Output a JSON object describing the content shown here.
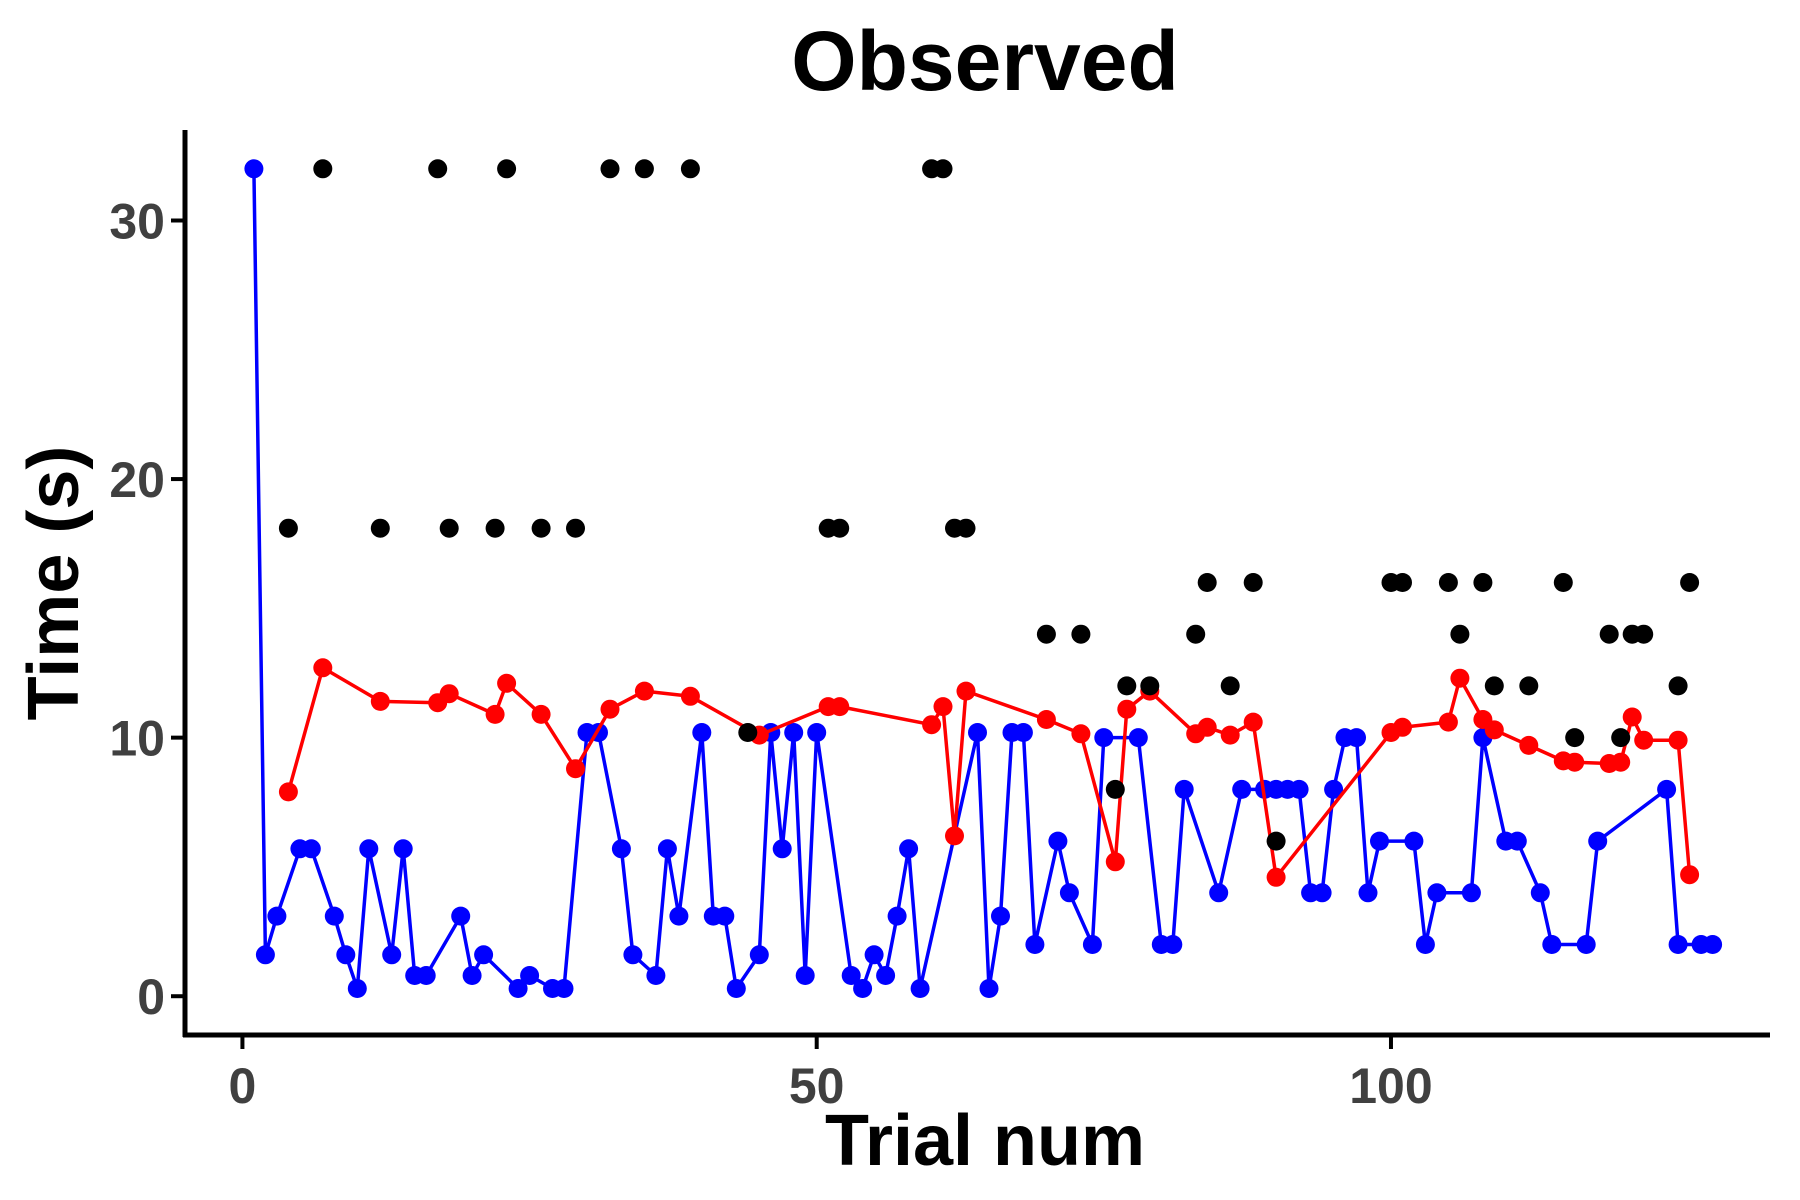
{
  "chart_data": {
    "type": "scatter",
    "title": "Observed",
    "xlabel": "Trial num",
    "ylabel": "Time (s)",
    "xlim": [
      -5,
      133
    ],
    "ylim": [
      -1.5,
      33.5
    ],
    "xticks": [
      0,
      50,
      100
    ],
    "yticks": [
      0,
      10,
      20,
      30
    ],
    "grid": false,
    "legend": "none",
    "series": [
      {
        "mode": "lines+markers",
        "color": "#0000ff",
        "points": [
          [
            1,
            32
          ],
          [
            2,
            1.6
          ],
          [
            3,
            3.1
          ],
          [
            5,
            5.7
          ],
          [
            6,
            5.7
          ],
          [
            8,
            3.1
          ],
          [
            9,
            1.6
          ],
          [
            10,
            0.3
          ],
          [
            11,
            5.7
          ],
          [
            13,
            1.6
          ],
          [
            14,
            5.7
          ],
          [
            15,
            0.8
          ],
          [
            16,
            0.8
          ],
          [
            19,
            3.1
          ],
          [
            20,
            0.8
          ],
          [
            21,
            1.6
          ],
          [
            24,
            0.3
          ],
          [
            25,
            0.8
          ],
          [
            27,
            0.3
          ],
          [
            28,
            0.3
          ],
          [
            30,
            10.2
          ],
          [
            31,
            10.2
          ],
          [
            33,
            5.7
          ],
          [
            34,
            1.6
          ],
          [
            36,
            0.8
          ],
          [
            37,
            5.7
          ],
          [
            38,
            3.1
          ],
          [
            40,
            10.2
          ],
          [
            41,
            3.1
          ],
          [
            42,
            3.1
          ],
          [
            43,
            0.3
          ],
          [
            45,
            1.6
          ],
          [
            46,
            10.2
          ],
          [
            47,
            5.7
          ],
          [
            48,
            10.2
          ],
          [
            49,
            0.8
          ],
          [
            50,
            10.2
          ],
          [
            53,
            0.8
          ],
          [
            54,
            0.3
          ],
          [
            55,
            1.6
          ],
          [
            56,
            0.8
          ],
          [
            57,
            3.1
          ],
          [
            58,
            5.7
          ],
          [
            59,
            0.3
          ],
          [
            64,
            10.2
          ],
          [
            65,
            0.3
          ],
          [
            66,
            3.1
          ],
          [
            67,
            10.2
          ],
          [
            68,
            10.2
          ],
          [
            69,
            2
          ],
          [
            71,
            6
          ],
          [
            72,
            4
          ],
          [
            74,
            2
          ],
          [
            75,
            10
          ],
          [
            78,
            10
          ],
          [
            80,
            2
          ],
          [
            81,
            2
          ],
          [
            82,
            8
          ],
          [
            85,
            4
          ],
          [
            87,
            8
          ],
          [
            89,
            8
          ],
          [
            90,
            8
          ],
          [
            91,
            8
          ],
          [
            92,
            8
          ],
          [
            93,
            4
          ],
          [
            94,
            4
          ],
          [
            95,
            8
          ],
          [
            96,
            10
          ],
          [
            97,
            10
          ],
          [
            98,
            4
          ],
          [
            99,
            6
          ],
          [
            102,
            6
          ],
          [
            103,
            2
          ],
          [
            104,
            4
          ],
          [
            107,
            4
          ],
          [
            108,
            10
          ],
          [
            110,
            6
          ],
          [
            111,
            6
          ],
          [
            113,
            4
          ],
          [
            114,
            2
          ],
          [
            117,
            2
          ],
          [
            118,
            6
          ],
          [
            124,
            8
          ],
          [
            125,
            2
          ],
          [
            127,
            2
          ],
          [
            128,
            2
          ]
        ]
      },
      {
        "mode": "lines+markers",
        "color": "#ff0000",
        "points": [
          [
            4,
            7.9
          ],
          [
            7,
            12.7
          ],
          [
            12,
            11.4
          ],
          [
            17,
            11.35
          ],
          [
            18,
            11.7
          ],
          [
            22,
            10.9
          ],
          [
            23,
            12.1
          ],
          [
            26,
            10.9
          ],
          [
            29,
            8.8
          ],
          [
            32,
            11.1
          ],
          [
            35,
            11.8
          ],
          [
            39,
            11.6
          ],
          [
            45,
            10.1
          ],
          [
            51,
            11.2
          ],
          [
            52,
            11.2
          ],
          [
            60,
            10.5
          ],
          [
            61,
            11.2
          ],
          [
            62,
            6.2
          ],
          [
            63,
            11.8
          ],
          [
            70,
            10.7
          ],
          [
            73,
            10.15
          ],
          [
            76,
            5.2
          ],
          [
            77,
            11.1
          ],
          [
            79,
            11.8
          ],
          [
            83,
            10.15
          ],
          [
            84,
            10.4
          ],
          [
            86,
            10.1
          ],
          [
            88,
            10.6
          ],
          [
            90,
            4.6
          ],
          [
            100,
            10.2
          ],
          [
            101,
            10.4
          ],
          [
            105,
            10.6
          ],
          [
            106,
            12.3
          ],
          [
            108,
            10.7
          ],
          [
            109,
            10.3
          ],
          [
            112,
            9.7
          ],
          [
            115,
            9.1
          ],
          [
            116,
            9.05
          ],
          [
            119,
            9.0
          ],
          [
            120,
            9.05
          ],
          [
            121,
            10.8
          ],
          [
            122,
            9.9
          ],
          [
            125,
            9.9
          ],
          [
            126,
            4.7
          ]
        ]
      },
      {
        "mode": "markers",
        "color": "#000000",
        "points": [
          [
            4,
            18.1
          ],
          [
            7,
            32
          ],
          [
            12,
            18.1
          ],
          [
            17,
            32
          ],
          [
            18,
            18.1
          ],
          [
            22,
            18.1
          ],
          [
            23,
            32
          ],
          [
            26,
            18.1
          ],
          [
            29,
            18.1
          ],
          [
            32,
            32
          ],
          [
            35,
            32
          ],
          [
            39,
            32
          ],
          [
            44,
            10.2
          ],
          [
            51,
            18.1
          ],
          [
            52,
            18.1
          ],
          [
            60,
            32
          ],
          [
            61,
            32
          ],
          [
            62,
            18.1
          ],
          [
            63,
            18.1
          ],
          [
            70,
            14
          ],
          [
            73,
            14
          ],
          [
            76,
            8
          ],
          [
            77,
            12
          ],
          [
            79,
            12
          ],
          [
            83,
            14
          ],
          [
            84,
            16
          ],
          [
            86,
            12
          ],
          [
            88,
            16
          ],
          [
            90,
            6
          ],
          [
            100,
            16
          ],
          [
            101,
            16
          ],
          [
            105,
            16
          ],
          [
            106,
            14
          ],
          [
            108,
            16
          ],
          [
            109,
            12
          ],
          [
            112,
            12
          ],
          [
            115,
            16
          ],
          [
            116,
            10
          ],
          [
            119,
            14
          ],
          [
            120,
            10
          ],
          [
            121,
            14
          ],
          [
            122,
            14
          ],
          [
            125,
            12
          ],
          [
            126,
            16
          ]
        ]
      }
    ]
  }
}
